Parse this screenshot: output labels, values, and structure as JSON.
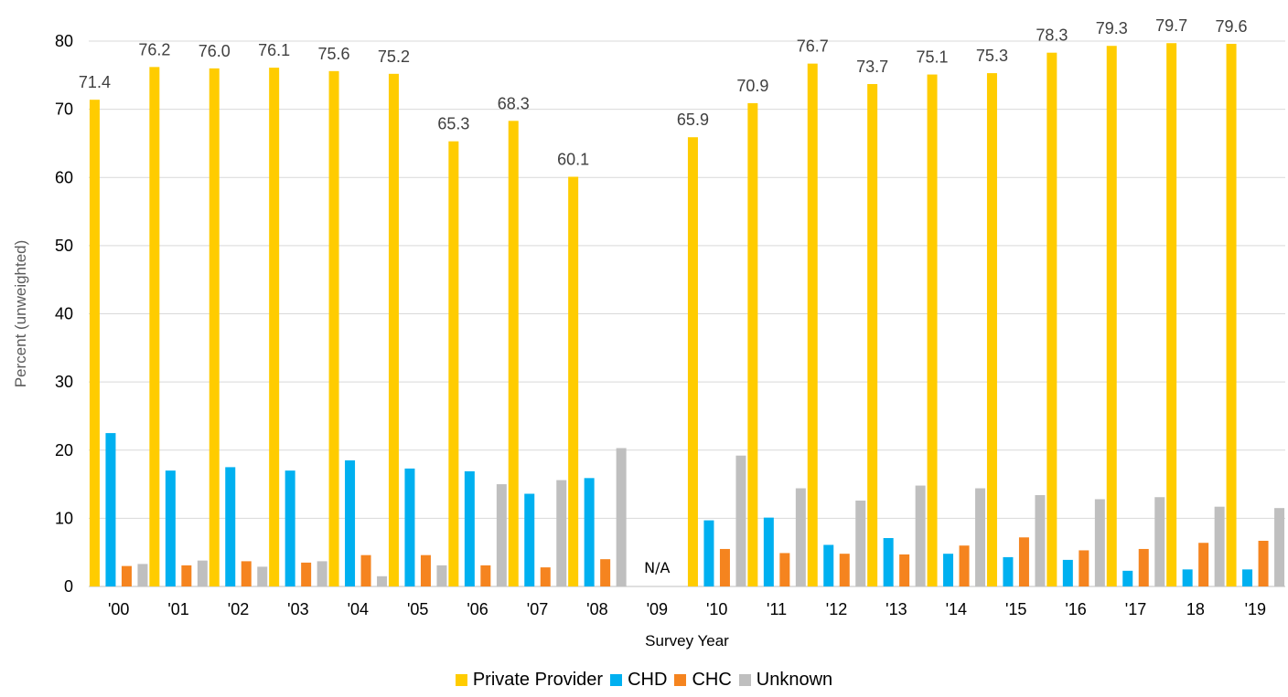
{
  "chart_data": {
    "type": "bar",
    "xlabel": "Survey Year",
    "ylabel": "Percent (unweighted)",
    "ylim": [
      0,
      80
    ],
    "yticks": [
      0,
      10,
      20,
      30,
      40,
      50,
      60,
      70,
      80
    ],
    "grid": true,
    "legend_position": "bottom",
    "categories": [
      "'00",
      "'01",
      "'02",
      "'03",
      "'04",
      "'05",
      "'06",
      "'07",
      "'08",
      "'09",
      "'10",
      "'11",
      "'12",
      "'13",
      "'14",
      "'15",
      "'16",
      "'17",
      "18",
      "'19"
    ],
    "series": [
      {
        "name": "Private Provider",
        "color": "#FFCC00",
        "values": [
          71.4,
          76.2,
          76.0,
          76.1,
          75.6,
          75.2,
          65.3,
          68.3,
          60.1,
          null,
          65.9,
          70.9,
          76.7,
          73.7,
          75.1,
          75.3,
          78.3,
          79.3,
          79.7,
          79.6
        ]
      },
      {
        "name": "CHD",
        "color": "#00B0F0",
        "values": [
          22.5,
          17.0,
          17.5,
          17.0,
          18.5,
          17.3,
          16.9,
          13.6,
          15.9,
          null,
          9.7,
          10.1,
          6.1,
          7.1,
          4.8,
          4.3,
          3.9,
          2.3,
          2.5,
          2.5
        ]
      },
      {
        "name": "CHC",
        "color": "#F5841F",
        "values": [
          3.0,
          3.1,
          3.7,
          3.5,
          4.6,
          4.6,
          3.1,
          2.8,
          4.0,
          null,
          5.5,
          4.9,
          4.8,
          4.7,
          6.0,
          7.2,
          5.3,
          5.5,
          6.4,
          6.7
        ]
      },
      {
        "name": "Unknown",
        "color": "#BFBFBF",
        "values": [
          3.3,
          3.8,
          2.9,
          3.7,
          1.5,
          3.1,
          15.0,
          15.6,
          20.3,
          null,
          19.2,
          14.4,
          12.6,
          14.8,
          14.4,
          13.4,
          12.8,
          13.1,
          11.7,
          11.5
        ]
      }
    ],
    "data_labels": [
      "71.4",
      "76.2",
      "76.0",
      "76.1",
      "75.6",
      "75.2",
      "65.3",
      "68.3",
      "60.1",
      "",
      "65.9",
      "70.9",
      "76.7",
      "73.7",
      "75.1",
      "75.3",
      "78.3",
      "79.3",
      "79.7",
      "79.6"
    ],
    "annotations": [
      {
        "category": "'09",
        "text": "N/A"
      }
    ]
  }
}
